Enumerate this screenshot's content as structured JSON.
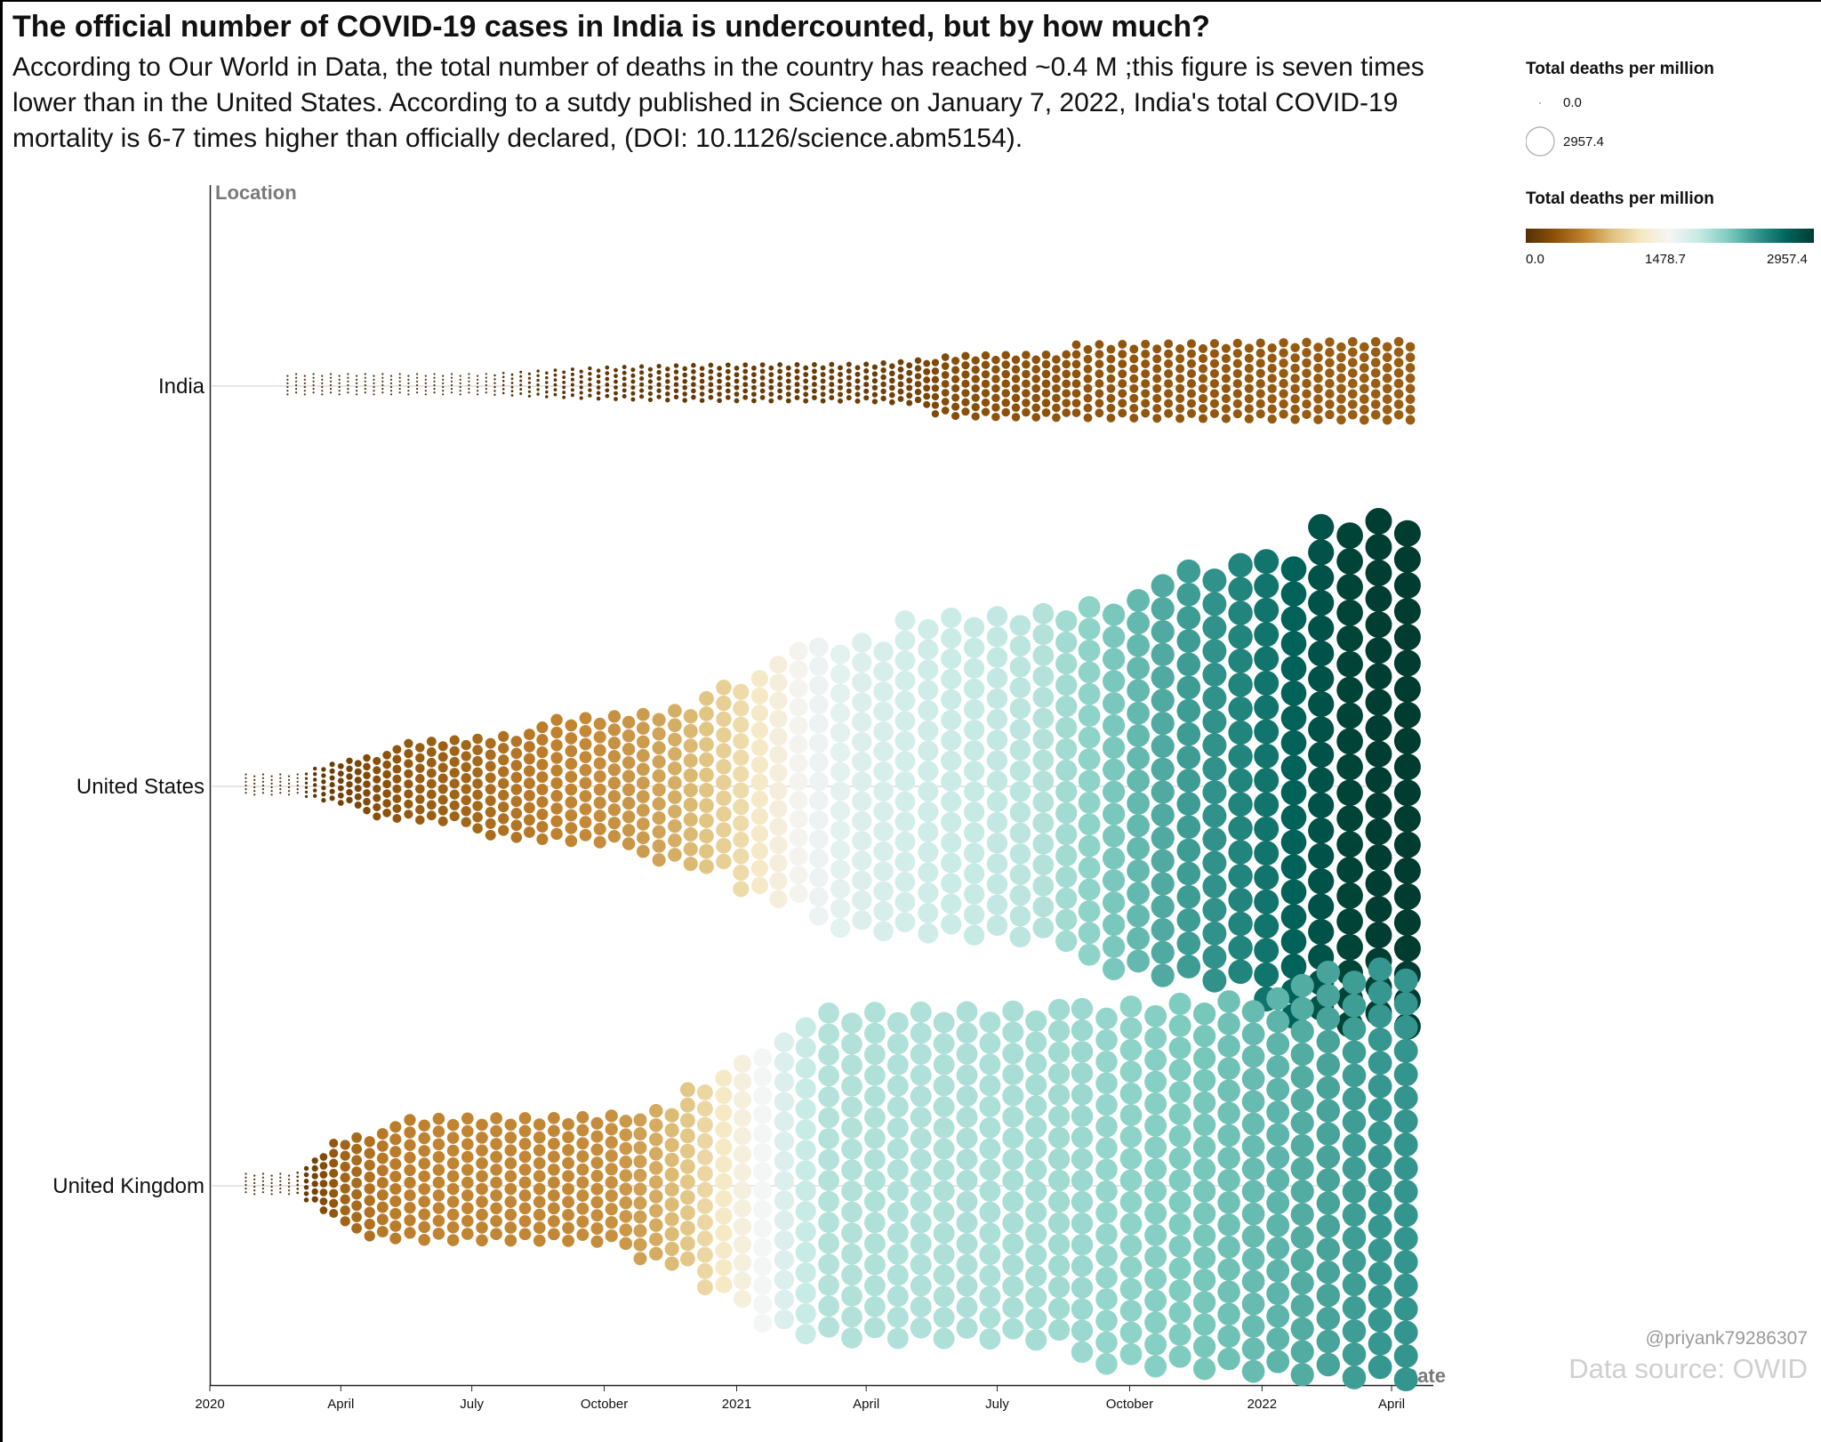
{
  "title": "The official number of COVID-19 cases in India is undercounted, but by how much?",
  "subtitle": "According to Our World in Data, the total number of deaths in the country has reached ~0.4 M ;this figure is seven times lower than in the United States. According to a sutdy published in Science on January 7, 2022, India's total COVID-19 mortality is 6-7 times higher than officially declared, (DOI: 10.1126/science.abm5154).",
  "legend": {
    "size_title": "Total deaths per million",
    "size_min_label": "0.0",
    "size_max_label": "2957.4",
    "color_title": "Total deaths per million",
    "color_ticks": [
      "0.0",
      "1478.7",
      "2957.4"
    ],
    "colors": [
      "#543005",
      "#8c510a",
      "#bf812d",
      "#dfc27d",
      "#f6e8c3",
      "#f5f5f5",
      "#c7eae5",
      "#80cdc1",
      "#35978f",
      "#01665e",
      "#003c30"
    ]
  },
  "watermark": {
    "handle": "@priyank79286307",
    "source": "Data source: OWID"
  },
  "chart_data": {
    "type": "scatter",
    "y_axis_title": "Location",
    "x_axis_title": "Date",
    "x_ticks": [
      "2020",
      "April",
      "July",
      "October",
      "2021",
      "April",
      "July",
      "October",
      "2022",
      "April"
    ],
    "x_range": [
      "2020-01-01",
      "2022-04-30"
    ],
    "size_encoding": "Total deaths per million",
    "color_encoding": "Total deaths per million",
    "value_range": [
      0.0,
      2957.4
    ],
    "series": [
      {
        "name": "India",
        "points": [
          {
            "date": "2020-03-01",
            "value": 0.1
          },
          {
            "date": "2020-04-01",
            "value": 0.2
          },
          {
            "date": "2020-05-01",
            "value": 1.5
          },
          {
            "date": "2020-06-01",
            "value": 4
          },
          {
            "date": "2020-07-01",
            "value": 12
          },
          {
            "date": "2020-08-01",
            "value": 27
          },
          {
            "date": "2020-09-01",
            "value": 48
          },
          {
            "date": "2020-10-01",
            "value": 72
          },
          {
            "date": "2020-11-01",
            "value": 88
          },
          {
            "date": "2020-12-01",
            "value": 102
          },
          {
            "date": "2021-01-01",
            "value": 108
          },
          {
            "date": "2021-02-01",
            "value": 111
          },
          {
            "date": "2021-03-01",
            "value": 113
          },
          {
            "date": "2021-04-01",
            "value": 118
          },
          {
            "date": "2021-05-01",
            "value": 160
          },
          {
            "date": "2021-06-01",
            "value": 270
          },
          {
            "date": "2021-07-01",
            "value": 295
          },
          {
            "date": "2021-08-01",
            "value": 305
          },
          {
            "date": "2021-09-01",
            "value": 316
          },
          {
            "date": "2021-10-01",
            "value": 322
          },
          {
            "date": "2021-11-01",
            "value": 330
          },
          {
            "date": "2021-12-01",
            "value": 335
          },
          {
            "date": "2022-01-01",
            "value": 345
          },
          {
            "date": "2022-02-01",
            "value": 358
          },
          {
            "date": "2022-03-01",
            "value": 370
          },
          {
            "date": "2022-04-01",
            "value": 372
          }
        ]
      },
      {
        "name": "United States",
        "points": [
          {
            "date": "2020-02-01",
            "value": 0.1
          },
          {
            "date": "2020-03-01",
            "value": 1
          },
          {
            "date": "2020-04-01",
            "value": 150
          },
          {
            "date": "2020-05-01",
            "value": 300
          },
          {
            "date": "2020-06-01",
            "value": 380
          },
          {
            "date": "2020-07-01",
            "value": 430
          },
          {
            "date": "2020-08-01",
            "value": 520
          },
          {
            "date": "2020-09-01",
            "value": 600
          },
          {
            "date": "2020-10-01",
            "value": 650
          },
          {
            "date": "2020-11-01",
            "value": 720
          },
          {
            "date": "2020-12-01",
            "value": 850
          },
          {
            "date": "2021-01-01",
            "value": 1050
          },
          {
            "date": "2021-02-01",
            "value": 1350
          },
          {
            "date": "2021-03-01",
            "value": 1550
          },
          {
            "date": "2021-04-01",
            "value": 1650
          },
          {
            "date": "2021-05-01",
            "value": 1700
          },
          {
            "date": "2021-06-01",
            "value": 1760
          },
          {
            "date": "2021-07-01",
            "value": 1790
          },
          {
            "date": "2021-08-01",
            "value": 1850
          },
          {
            "date": "2021-09-01",
            "value": 2000
          },
          {
            "date": "2021-10-01",
            "value": 2150
          },
          {
            "date": "2021-11-01",
            "value": 2300
          },
          {
            "date": "2021-12-01",
            "value": 2400
          },
          {
            "date": "2022-01-01",
            "value": 2550
          },
          {
            "date": "2022-02-01",
            "value": 2750
          },
          {
            "date": "2022-03-01",
            "value": 2900
          },
          {
            "date": "2022-04-01",
            "value": 2957.4
          }
        ]
      },
      {
        "name": "United Kingdom",
        "points": [
          {
            "date": "2020-02-01",
            "value": 0.1
          },
          {
            "date": "2020-03-01",
            "value": 10
          },
          {
            "date": "2020-04-01",
            "value": 400
          },
          {
            "date": "2020-05-01",
            "value": 550
          },
          {
            "date": "2020-06-01",
            "value": 600
          },
          {
            "date": "2020-07-01",
            "value": 610
          },
          {
            "date": "2020-08-01",
            "value": 615
          },
          {
            "date": "2020-09-01",
            "value": 620
          },
          {
            "date": "2020-10-01",
            "value": 650
          },
          {
            "date": "2020-11-01",
            "value": 750
          },
          {
            "date": "2020-12-01",
            "value": 950
          },
          {
            "date": "2021-01-01",
            "value": 1300
          },
          {
            "date": "2021-02-01",
            "value": 1620
          },
          {
            "date": "2021-03-01",
            "value": 1850
          },
          {
            "date": "2021-04-01",
            "value": 1870
          },
          {
            "date": "2021-05-01",
            "value": 1875
          },
          {
            "date": "2021-06-01",
            "value": 1880
          },
          {
            "date": "2021-07-01",
            "value": 1890
          },
          {
            "date": "2021-08-01",
            "value": 1920
          },
          {
            "date": "2021-09-01",
            "value": 1960
          },
          {
            "date": "2021-10-01",
            "value": 2010
          },
          {
            "date": "2021-11-01",
            "value": 2070
          },
          {
            "date": "2021-12-01",
            "value": 2120
          },
          {
            "date": "2022-01-01",
            "value": 2180
          },
          {
            "date": "2022-02-01",
            "value": 2260
          },
          {
            "date": "2022-03-01",
            "value": 2320
          },
          {
            "date": "2022-04-01",
            "value": 2380
          }
        ]
      }
    ]
  }
}
